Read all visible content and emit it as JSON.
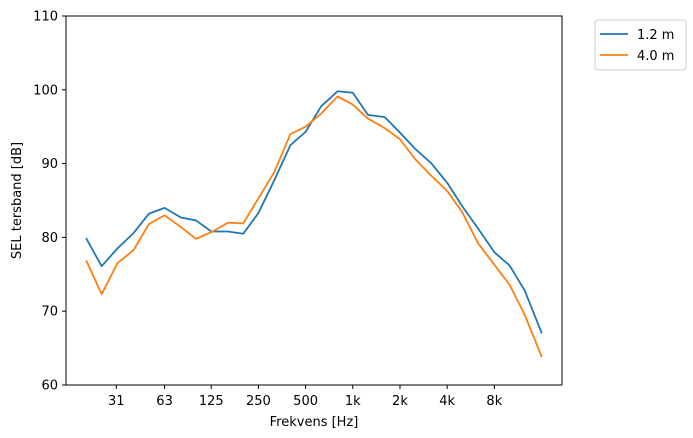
{
  "chart_data": {
    "type": "line",
    "title": "",
    "xlabel": "Frekvens [Hz]",
    "ylabel": "SEL tersband [dB]",
    "ylim": [
      60,
      110
    ],
    "xscale": "log2",
    "yticks": [
      60,
      70,
      80,
      90,
      100,
      110
    ],
    "xticks": [
      {
        "value": 31,
        "label": "31"
      },
      {
        "value": 63,
        "label": "63"
      },
      {
        "value": 125,
        "label": "125"
      },
      {
        "value": 250,
        "label": "250"
      },
      {
        "value": 500,
        "label": "500"
      },
      {
        "value": 1000,
        "label": "1k"
      },
      {
        "value": 2000,
        "label": "2k"
      },
      {
        "value": 4000,
        "label": "4k"
      },
      {
        "value": 8000,
        "label": "8k"
      }
    ],
    "x": [
      20,
      25,
      31.5,
      40,
      50,
      63,
      80,
      100,
      125,
      160,
      200,
      250,
      315,
      400,
      500,
      630,
      800,
      1000,
      1250,
      1600,
      2000,
      2500,
      3150,
      4000,
      5000,
      6300,
      8000,
      10000,
      12500,
      16000
    ],
    "series": [
      {
        "name": "1.2 m",
        "color": "#1f77b4",
        "values": [
          79.8,
          76.1,
          78.5,
          80.6,
          83.2,
          84.0,
          82.7,
          82.3,
          80.8,
          80.8,
          80.5,
          83.3,
          87.7,
          92.5,
          94.3,
          97.8,
          99.8,
          99.6,
          96.6,
          96.3,
          94.2,
          92.0,
          90.1,
          87.4,
          84.2,
          81.2,
          78.0,
          76.2,
          72.8,
          67.1
        ]
      },
      {
        "name": "4.0 m",
        "color": "#ff7f0e",
        "values": [
          76.8,
          72.3,
          76.5,
          78.3,
          81.8,
          83.0,
          81.4,
          79.8,
          80.7,
          82.0,
          81.9,
          85.3,
          88.8,
          94.0,
          95.0,
          96.8,
          99.1,
          98.0,
          96.1,
          94.8,
          93.3,
          90.6,
          88.4,
          86.3,
          83.4,
          79.2,
          76.3,
          73.6,
          69.5,
          63.9
        ]
      }
    ],
    "legend": {
      "position": "outside-top-right"
    },
    "grid": false
  }
}
